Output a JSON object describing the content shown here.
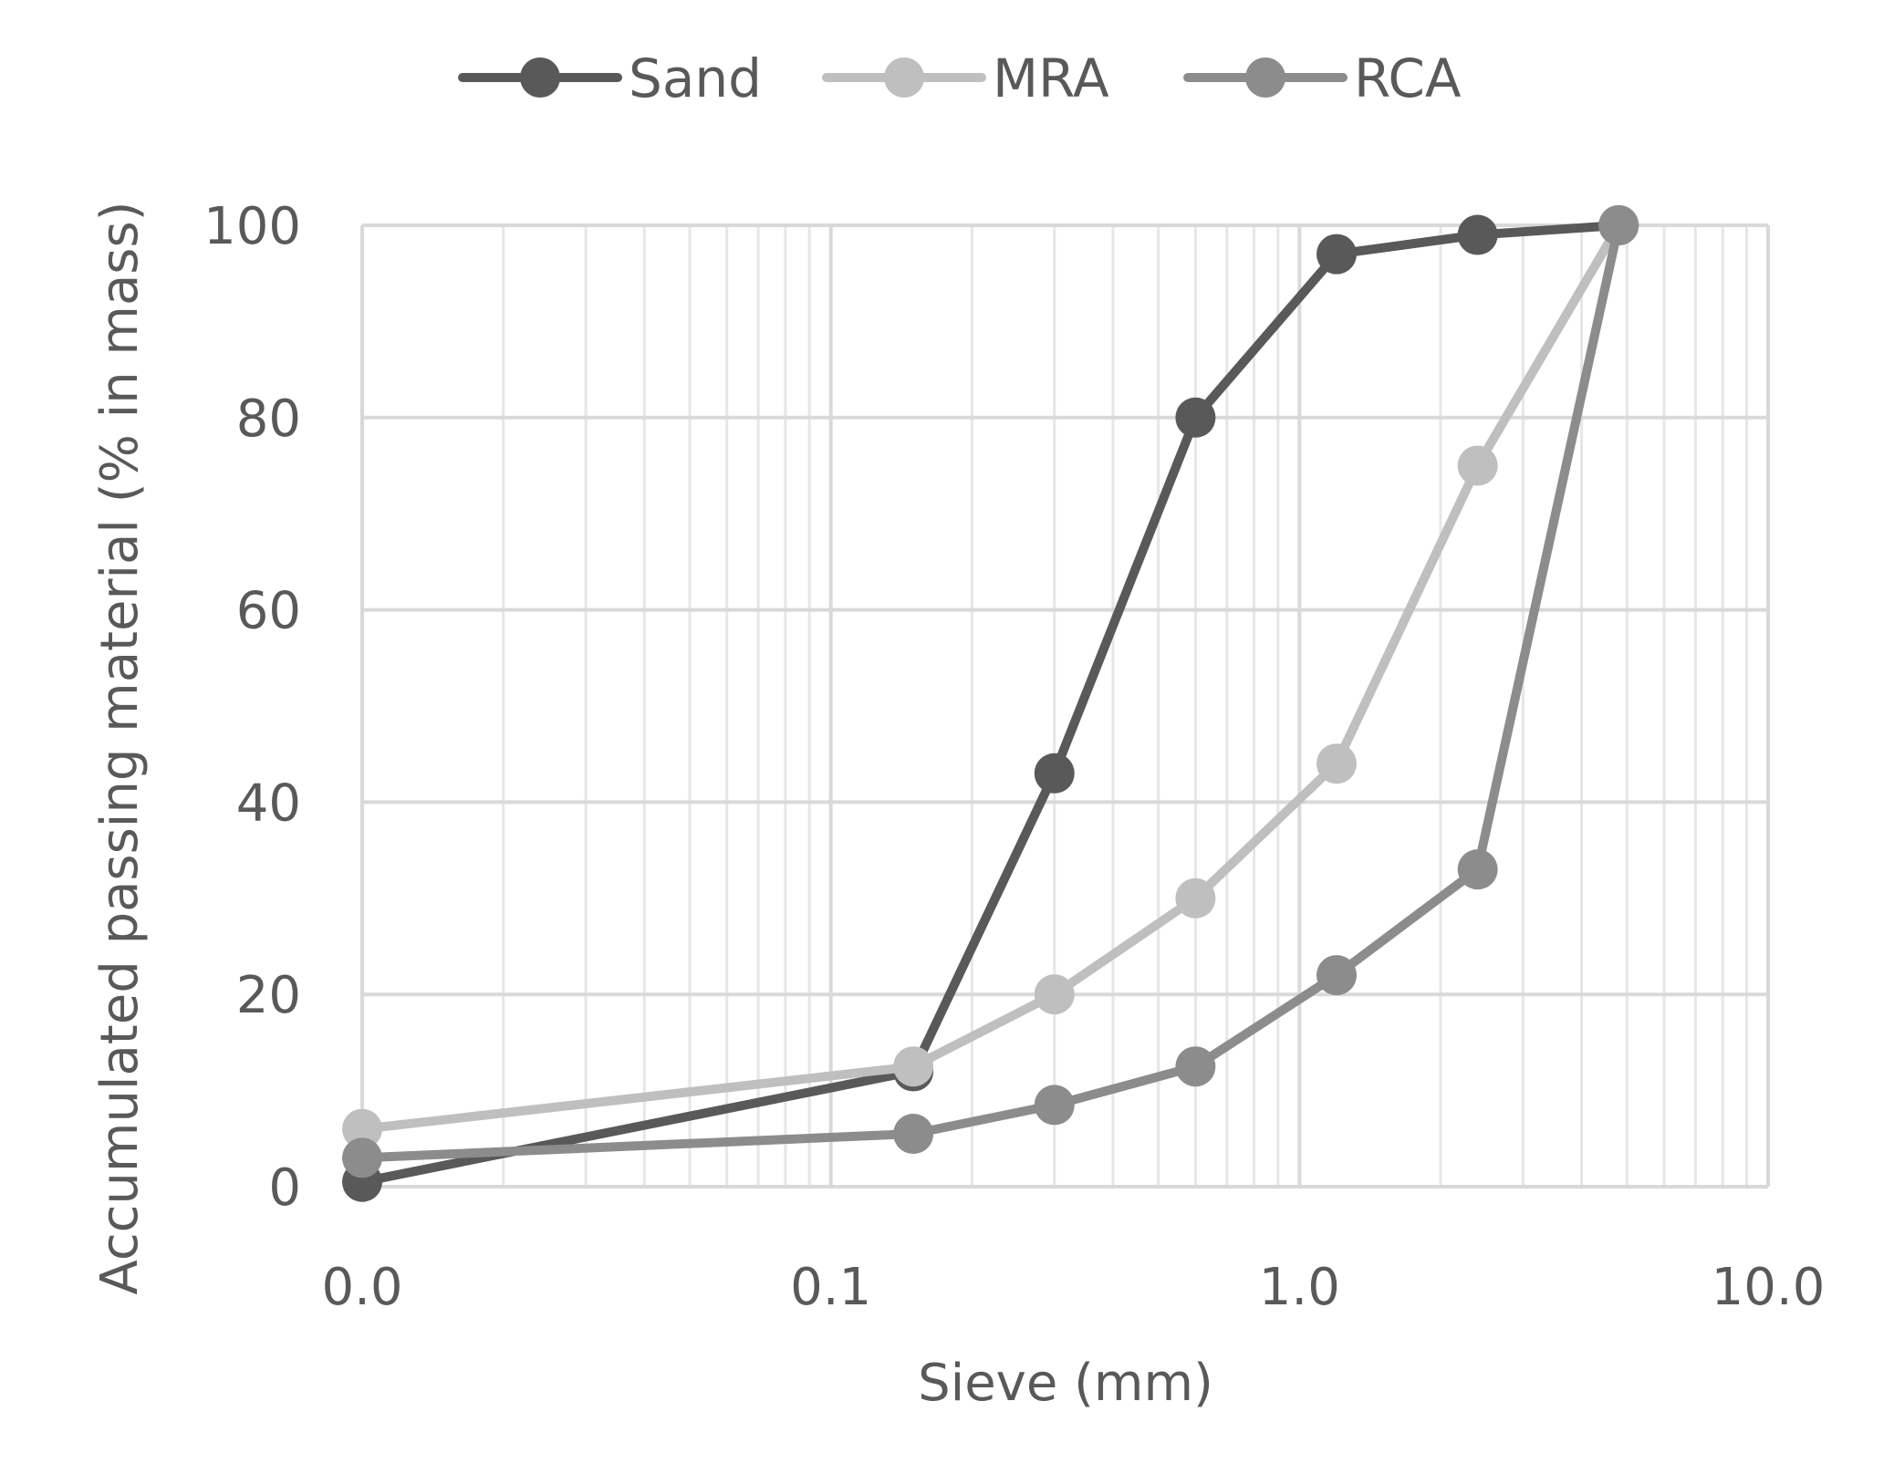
{
  "chart_data": {
    "type": "line",
    "title": "",
    "xlabel": "Sieve (mm)",
    "ylabel": "Accumulated passing material (% in mass)",
    "x_scale": "log",
    "xlim": [
      0.01,
      10
    ],
    "ylim": [
      0,
      100
    ],
    "x_ticks": [
      {
        "value": 0.01,
        "label": "0.0"
      },
      {
        "value": 0.1,
        "label": "0.1"
      },
      {
        "value": 1,
        "label": "1.0"
      },
      {
        "value": 10,
        "label": "10.0"
      }
    ],
    "y_ticks": [
      {
        "value": 0,
        "label": "0"
      },
      {
        "value": 20,
        "label": "20"
      },
      {
        "value": 40,
        "label": "40"
      },
      {
        "value": 60,
        "label": "60"
      },
      {
        "value": 80,
        "label": "80"
      },
      {
        "value": 100,
        "label": "100"
      }
    ],
    "grid": true,
    "legend_position": "top-center",
    "x": [
      0.01,
      0.15,
      0.3,
      0.6,
      1.2,
      2.4,
      4.8
    ],
    "series": [
      {
        "name": "Sand",
        "color": "#595959",
        "values": [
          0.5,
          12,
          43,
          80,
          97,
          99,
          100
        ]
      },
      {
        "name": "MRA",
        "color": "#bfbfbf",
        "values": [
          6,
          12.5,
          20,
          30,
          44,
          75,
          100
        ]
      },
      {
        "name": "RCA",
        "color": "#8c8c8c",
        "values": [
          3,
          5.5,
          8.5,
          12.5,
          22,
          33,
          100
        ]
      }
    ]
  }
}
